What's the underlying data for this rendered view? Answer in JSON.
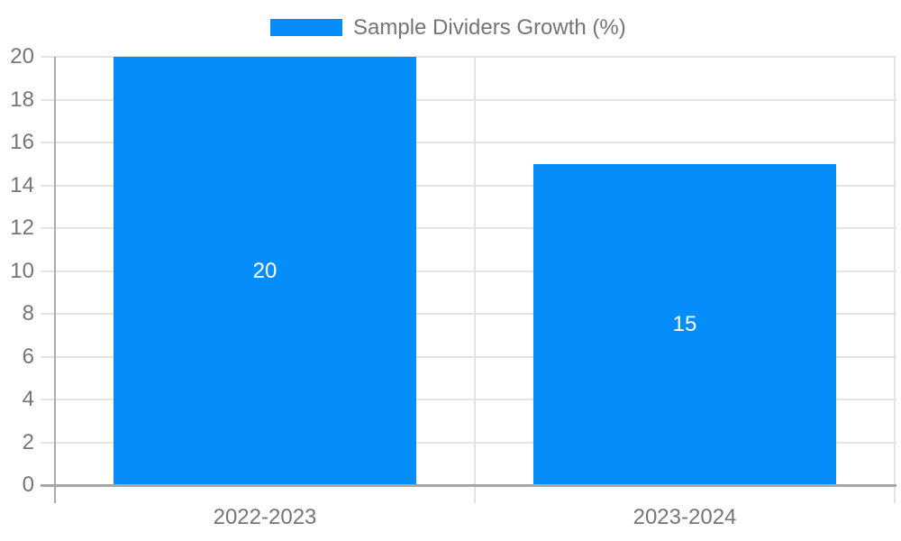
{
  "chart_data": {
    "type": "bar",
    "title": "Sample Dividers Growth (%)",
    "legend": {
      "label": "Sample Dividers Growth (%)",
      "position": "top-center"
    },
    "categories": [
      "2022-2023",
      "2023-2024"
    ],
    "series": [
      {
        "name": "Sample Dividers Growth (%)",
        "values": [
          20,
          15
        ]
      }
    ],
    "data_labels": [
      "20",
      "15"
    ],
    "ylim": [
      0,
      20
    ],
    "ytick_step": 2,
    "ytick_labels": [
      "0",
      "2",
      "4",
      "6",
      "8",
      "10",
      "12",
      "14",
      "16",
      "18",
      "20"
    ],
    "xlabel": "",
    "ylabel": "",
    "grid": true,
    "colors": {
      "bar": "#058DFA",
      "grid_line": "#e3e3e3",
      "y_axis_line": "#ababab",
      "baseline": "#a6a6a6",
      "axis_text": "#757575",
      "legend_text": "#757575",
      "data_label_text": "#ffffff",
      "background": "#ffffff"
    }
  }
}
